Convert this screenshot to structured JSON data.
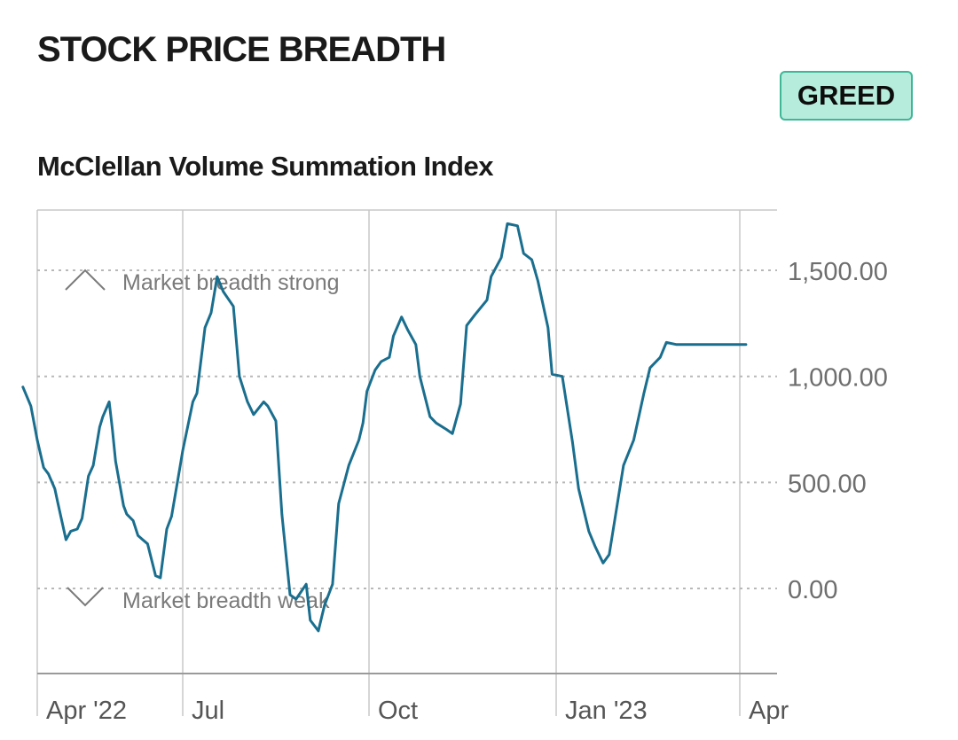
{
  "header": {
    "title": "STOCK PRICE BREADTH",
    "rating": "GREED"
  },
  "colors": {
    "line": "#1a6e8e",
    "badge_bg": "#b5ecdc",
    "badge_border": "#3fb796",
    "grid": "#c8c8c8"
  },
  "chart_data": {
    "type": "line",
    "title": "McClellan Volume Summation Index",
    "xlabel": "",
    "ylabel": "",
    "x_ticks": [
      "Apr '22",
      "Jul",
      "Oct",
      "Jan '23",
      "Apr"
    ],
    "y_ticks": [
      "1,500.00",
      "1,000.00",
      "500.00",
      "0.00"
    ],
    "y_tick_values": [
      1500,
      1000,
      500,
      0
    ],
    "ylim": [
      -400,
      1780
    ],
    "grid": {
      "horizontal": "dotted",
      "vertical": "solid"
    },
    "annotations": {
      "strong": "Market breadth strong",
      "weak": "Market breadth weak"
    },
    "series": [
      {
        "x": [
          "2022-03-23",
          "2022-03-28",
          "2022-04-01",
          "2022-04-05",
          "2022-04-08",
          "2022-04-12",
          "2022-04-14",
          "2022-04-19",
          "2022-04-22",
          "2022-04-26",
          "2022-04-29",
          "2022-05-03",
          "2022-05-06",
          "2022-05-10",
          "2022-05-12",
          "2022-05-16",
          "2022-05-18",
          "2022-05-20",
          "2022-05-25",
          "2022-05-27",
          "2022-05-31",
          "2022-06-03",
          "2022-06-06",
          "2022-06-09",
          "2022-06-14",
          "2022-06-17",
          "2022-06-21",
          "2022-06-24",
          "2022-06-29",
          "2022-07-01",
          "2022-07-06",
          "2022-07-08",
          "2022-07-12",
          "2022-07-15",
          "2022-07-18",
          "2022-07-21",
          "2022-07-26",
          "2022-07-29",
          "2022-08-02",
          "2022-08-05",
          "2022-08-10",
          "2022-08-12",
          "2022-08-16",
          "2022-08-19",
          "2022-08-23",
          "2022-08-26",
          "2022-08-31",
          "2022-09-02",
          "2022-09-06",
          "2022-09-09",
          "2022-09-13",
          "2022-09-16",
          "2022-09-21",
          "2022-09-26",
          "2022-09-28",
          "2022-09-30",
          "2022-10-04",
          "2022-10-07",
          "2022-10-11",
          "2022-10-13",
          "2022-10-17",
          "2022-10-20",
          "2022-10-24",
          "2022-10-26",
          "2022-10-31",
          "2022-11-03",
          "2022-11-08",
          "2022-11-11",
          "2022-11-15",
          "2022-11-18",
          "2022-11-22",
          "2022-11-28",
          "2022-11-30",
          "2022-12-05",
          "2022-12-08",
          "2022-12-13",
          "2022-12-16",
          "2022-12-20",
          "2022-12-23",
          "2022-12-28",
          "2022-12-30",
          "2023-01-04",
          "2023-01-09",
          "2023-01-12",
          "2023-01-17",
          "2023-01-20",
          "2023-01-24",
          "2023-01-27",
          "2023-01-31",
          "2023-02-03",
          "2023-02-08",
          "2023-02-13",
          "2023-02-16",
          "2023-02-21",
          "2023-02-24",
          "2023-03-01",
          "2023-03-06",
          "2023-03-09",
          "2023-03-13",
          "2023-03-15",
          "2023-03-17",
          "2023-03-21",
          "2023-03-24",
          "2023-03-28",
          "2023-03-31",
          "2023-04-04"
        ],
        "values": [
          950,
          860,
          700,
          570,
          540,
          470,
          400,
          230,
          270,
          280,
          330,
          530,
          580,
          760,
          810,
          880,
          750,
          600,
          390,
          350,
          320,
          250,
          230,
          210,
          60,
          50,
          280,
          340,
          560,
          650,
          880,
          920,
          1230,
          1300,
          1470,
          1400,
          1330,
          1000,
          880,
          820,
          880,
          860,
          790,
          350,
          -30,
          -50,
          20,
          -150,
          -200,
          -80,
          20,
          400,
          580,
          700,
          780,
          930,
          1030,
          1070,
          1090,
          1190,
          1280,
          1220,
          1150,
          1000,
          810,
          780,
          750,
          730,
          870,
          1240,
          1290,
          1360,
          1470,
          1560,
          1720,
          1710,
          1580,
          1550,
          1450,
          1230,
          1010,
          1000,
          690,
          470,
          270,
          200,
          120,
          160,
          400,
          580,
          700,
          920,
          1040,
          1090,
          1160,
          1150,
          1150,
          1150,
          1150,
          1150,
          1150,
          1150,
          1150,
          1150,
          1150,
          1150
        ]
      }
    ]
  }
}
